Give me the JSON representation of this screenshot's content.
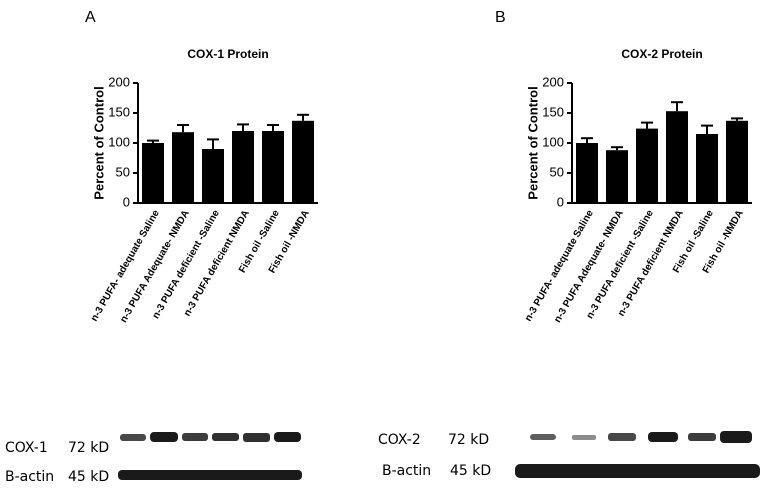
{
  "chart_data": [
    {
      "type": "bar",
      "title": "COX-1 Protein",
      "y_label": "Percent of Control",
      "categories": [
        "n-3 PUFA- adequate Saline",
        "n-3 PUFA Adequate- NMDA",
        "n-3 PUFA deficient -Saline",
        "n-3 PUFA deficient NMDA",
        "Fish oil -Saline",
        "Fish oil -NMDA"
      ],
      "values": [
        100,
        118,
        90,
        120,
        120,
        137
      ],
      "errors": [
        4,
        12,
        16,
        11,
        10,
        10
      ],
      "color": "#000000",
      "ylim": [
        0,
        200
      ],
      "yticks": [
        0,
        50,
        100,
        150,
        200
      ]
    },
    {
      "type": "bar",
      "title": "COX-2 Protein",
      "y_label": "Percent of Control",
      "categories": [
        "n-3 PUFA- adequate Saline",
        "n-3 PUFA Adequate- NMDA",
        "n-3 PUFA deficient -Saline",
        "n-3 PUFA deficient NMDA",
        "Fish oil -Saline",
        "Fish oil -NMDA"
      ],
      "values": [
        100,
        88,
        124,
        153,
        115,
        137
      ],
      "errors": [
        8,
        5,
        10,
        15,
        14,
        4
      ],
      "color": "#000000",
      "ylim": [
        0,
        200
      ],
      "yticks": [
        0,
        50,
        100,
        150,
        200
      ]
    }
  ],
  "panels": [
    "A",
    "B"
  ],
  "blots": [
    {
      "target": "COX-1",
      "target_size": "72 kD",
      "control": "B-actin",
      "control_size": "45 kD"
    },
    {
      "target": "COX-2",
      "target_size": "72 kD",
      "control": "B-actin",
      "control_size": "45 kD"
    }
  ]
}
